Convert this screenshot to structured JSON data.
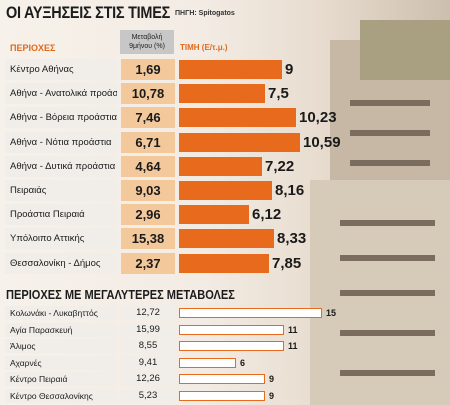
{
  "header": {
    "title": "ΟΙ ΑΥΞΗΣΕΙΣ ΣΤΙΣ ΤΙΜΕΣ",
    "source": "ΠΗΓΗ: Spitogatos",
    "col_region": "ΠΕΡΙΟΧΕΣ",
    "col_change": "Μεταβολή 9μήνου (%)",
    "col_price": "ΤΙΜΗ (Ε/τ.μ.)"
  },
  "section2_title": "ΠΕΡΙΟΧΕΣ ΜΕ ΜΕΓΑΛΥΤΕΡΕΣ ΜΕΤΑΒΟΛΕΣ",
  "colors": {
    "accent": "#e86a1c",
    "value_bg": "#f3c99c",
    "label_bg": "#f1eeea"
  },
  "chart_data": [
    {
      "type": "bar",
      "orientation": "horizontal",
      "categories": [
        "Κέντρο Αθήνας",
        "Αθήνα - Ανατολικά προάστια",
        "Αθήνα - Βόρεια προάστια",
        "Αθήνα - Νότια προάστια",
        "Αθήνα - Δυτικά προάστια",
        "Πειραιάς",
        "Προάστια Πειραιά",
        "Υπόλοιπο Αττικής",
        "Θεσσαλονίκη - Δήμος"
      ],
      "change_pct": [
        "1,69",
        "10,78",
        "7,46",
        "6,71",
        "4,64",
        "9,03",
        "2,96",
        "15,38",
        "2,37"
      ],
      "values": [
        9,
        7.5,
        10.23,
        10.59,
        7.22,
        8.16,
        6.12,
        8.33,
        7.85
      ],
      "value_labels": [
        "9",
        "7,5",
        "10,23",
        "10,59",
        "7,22",
        "8,16",
        "6,12",
        "8,33",
        "7,85"
      ],
      "xlim": [
        0,
        11
      ]
    },
    {
      "type": "bar",
      "orientation": "horizontal",
      "categories": [
        "Κολωνάκι - Λυκαβηττός",
        "Αγία Παρασκευή",
        "Άλιμος",
        "Αχαρνές",
        "Κέντρο Πειραιά",
        "Κέντρο Θεσσαλονίκης"
      ],
      "change_pct": [
        "12,72",
        "15,99",
        "8,55",
        "9,41",
        "12,26",
        "5,23"
      ],
      "values": [
        15,
        11,
        11,
        6,
        9,
        9
      ],
      "value_labels": [
        "15",
        "11",
        "11",
        "6",
        "9",
        "9"
      ],
      "xlim": [
        0,
        16
      ]
    }
  ]
}
